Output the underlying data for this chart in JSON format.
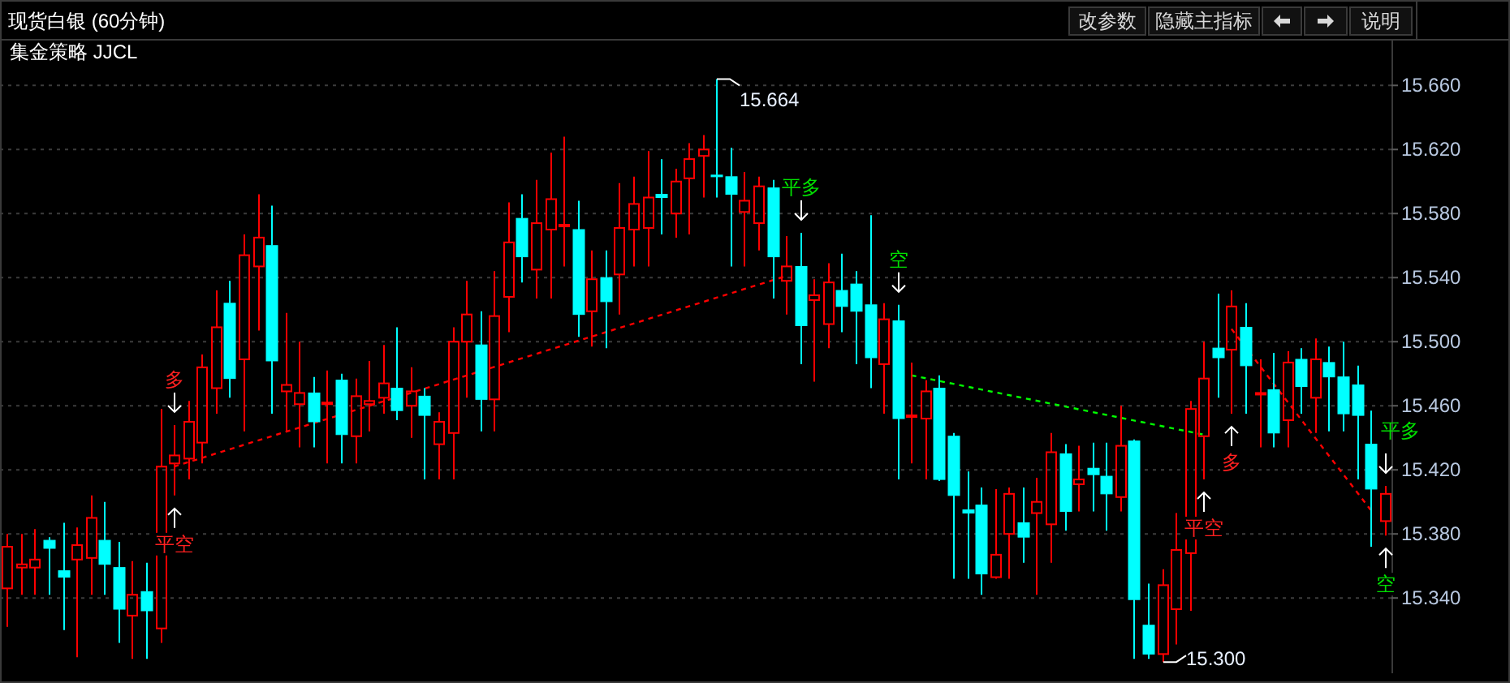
{
  "chart_data": {
    "type": "candlestick",
    "title": "现货白银 (60分钟)",
    "subtitle": "集金策略 JJCL",
    "categories": [
      null,
      null,
      null,
      null,
      null,
      null,
      null,
      null,
      null,
      null,
      null,
      null,
      null,
      null,
      null,
      null,
      null,
      null,
      null,
      null,
      null,
      null,
      null,
      null,
      null,
      null,
      null,
      null,
      null,
      null,
      null,
      null,
      null,
      null,
      null,
      null,
      null,
      null,
      null,
      null,
      null,
      null,
      null,
      null,
      null,
      null,
      null,
      null,
      null,
      null,
      null,
      null,
      null,
      null,
      null,
      null,
      null,
      null,
      null,
      null,
      null,
      null,
      null,
      null,
      null,
      null,
      null,
      null,
      null,
      null,
      null,
      null,
      null,
      null,
      null,
      null,
      null,
      null,
      null,
      null,
      null,
      null,
      null,
      null,
      null,
      null,
      null,
      null,
      null,
      null,
      null,
      null,
      null,
      null,
      null,
      null,
      null,
      null,
      null,
      null
    ],
    "colors": [
      "#ff0000",
      "#ff0000",
      "#ff0000",
      "#00ffff",
      "#00ffff",
      "#ff0000",
      "#ff0000",
      "#00ffff",
      "#00ffff",
      "#ff0000",
      "#00ffff",
      "#ff0000",
      "#ff0000",
      "#ff0000",
      "#ff0000",
      "#ff0000",
      "#00ffff",
      "#ff0000",
      "#ff0000",
      "#00ffff",
      "#ff0000",
      "#ff0000",
      "#00ffff",
      "#ff0000",
      "#00ffff",
      "#ff0000",
      "#ff0000",
      "#ff0000",
      "#00ffff",
      "#ff0000",
      "#00ffff",
      "#ff0000",
      "#ff0000",
      "#ff0000",
      "#00ffff",
      "#ff0000",
      "#ff0000",
      "#00ffff",
      "#ff0000",
      "#ff0000",
      "#ff0000",
      "#00ffff",
      "#ff0000",
      "#00ffff",
      "#ff0000",
      "#ff0000",
      "#ff0000",
      "#00ffff",
      "#ff0000",
      "#ff0000",
      "#ff0000",
      "#00ffff",
      "#00ffff",
      "#ff0000",
      "#ff0000",
      "#00ffff",
      "#ff0000",
      "#00ffff",
      "#ff0000",
      "#ff0000",
      "#00ffff",
      "#00ffff",
      "#00ffff",
      "#ff0000",
      "#00ffff",
      "#ff0000",
      "#ff0000",
      "#00ffff",
      "#00ffff",
      "#00ffff",
      "#00ffff",
      "#ff0000",
      "#ff0000",
      "#00ffff",
      "#ff0000",
      "#ff0000",
      "#00ffff",
      "#ff0000",
      "#00ffff",
      "#00ffff",
      "#ff0000",
      "#00ffff",
      "#00ffff",
      "#ff0000",
      "#ff0000",
      "#ff0000",
      "#ff0000",
      "#00ffff",
      "#ff0000",
      "#00ffff",
      "#ff0000",
      "#00ffff",
      "#ff0000",
      "#00ffff",
      "#ff0000",
      "#00ffff",
      "#00ffff",
      "#00ffff",
      "#00ffff",
      "#ff0000"
    ],
    "ohlc": [
      [
        15.346,
        15.38,
        15.322,
        15.372
      ],
      [
        15.359,
        15.38,
        15.342,
        15.361
      ],
      [
        15.359,
        15.383,
        15.342,
        15.364
      ],
      [
        15.376,
        15.378,
        15.342,
        15.371
      ],
      [
        15.357,
        15.387,
        15.32,
        15.353
      ],
      [
        15.364,
        15.384,
        15.303,
        15.373
      ],
      [
        15.365,
        15.404,
        15.342,
        15.39
      ],
      [
        15.376,
        15.4,
        15.342,
        15.361
      ],
      [
        15.359,
        15.375,
        15.312,
        15.333
      ],
      [
        15.329,
        15.363,
        15.302,
        15.342
      ],
      [
        15.344,
        15.362,
        15.302,
        15.332
      ],
      [
        15.321,
        15.458,
        15.312,
        15.422
      ],
      [
        15.424,
        15.448,
        15.404,
        15.429
      ],
      [
        15.427,
        15.463,
        15.414,
        15.45
      ],
      [
        15.437,
        15.492,
        15.424,
        15.484
      ],
      [
        15.471,
        15.532,
        15.455,
        15.509
      ],
      [
        15.524,
        15.538,
        15.465,
        15.477
      ],
      [
        15.489,
        15.567,
        15.444,
        15.554
      ],
      [
        15.547,
        15.592,
        15.507,
        15.565
      ],
      [
        15.56,
        15.585,
        15.455,
        15.488
      ],
      [
        15.469,
        15.518,
        15.444,
        15.473
      ],
      [
        15.461,
        15.5,
        15.434,
        15.468
      ],
      [
        15.468,
        15.478,
        15.434,
        15.45
      ],
      [
        15.461,
        15.482,
        15.424,
        15.462
      ],
      [
        15.476,
        15.48,
        15.424,
        15.442
      ],
      [
        15.441,
        15.477,
        15.424,
        15.466
      ],
      [
        15.461,
        15.488,
        15.444,
        15.463
      ],
      [
        15.465,
        15.498,
        15.455,
        15.474
      ],
      [
        15.471,
        15.509,
        15.451,
        15.457
      ],
      [
        15.46,
        15.484,
        15.44,
        15.469
      ],
      [
        15.466,
        15.471,
        15.414,
        15.454
      ],
      [
        15.436,
        15.456,
        15.414,
        15.45
      ],
      [
        15.443,
        15.509,
        15.414,
        15.5
      ],
      [
        15.5,
        15.538,
        15.465,
        15.517
      ],
      [
        15.498,
        15.519,
        15.444,
        15.464
      ],
      [
        15.464,
        15.544,
        15.444,
        15.516
      ],
      [
        15.528,
        15.587,
        15.506,
        15.562
      ],
      [
        15.577,
        15.592,
        15.537,
        15.553
      ],
      [
        15.545,
        15.601,
        15.527,
        15.574
      ],
      [
        15.57,
        15.618,
        15.527,
        15.589
      ],
      [
        15.572,
        15.628,
        15.547,
        15.573
      ],
      [
        15.57,
        15.588,
        15.503,
        15.517
      ],
      [
        15.519,
        15.557,
        15.497,
        15.539
      ],
      [
        15.54,
        15.557,
        15.496,
        15.525
      ],
      [
        15.542,
        15.599,
        15.517,
        15.571
      ],
      [
        15.57,
        15.603,
        15.547,
        15.586
      ],
      [
        15.571,
        15.619,
        15.547,
        15.59
      ],
      [
        15.592,
        15.614,
        15.567,
        15.59
      ],
      [
        15.58,
        15.608,
        15.565,
        15.6
      ],
      [
        15.602,
        15.624,
        15.567,
        15.614
      ],
      [
        15.616,
        15.629,
        15.59,
        15.62
      ],
      [
        15.604,
        15.664,
        15.59,
        15.603
      ],
      [
        15.603,
        15.621,
        15.547,
        15.592
      ],
      [
        15.581,
        15.606,
        15.547,
        15.588
      ],
      [
        15.574,
        15.603,
        15.557,
        15.597
      ],
      [
        15.596,
        15.601,
        15.527,
        15.553
      ],
      [
        15.538,
        15.566,
        15.517,
        15.547
      ],
      [
        15.547,
        15.568,
        15.486,
        15.51
      ],
      [
        15.526,
        15.539,
        15.475,
        15.529
      ],
      [
        15.511,
        15.549,
        15.496,
        15.537
      ],
      [
        15.532,
        15.555,
        15.506,
        15.522
      ],
      [
        15.536,
        15.544,
        15.486,
        15.519
      ],
      [
        15.523,
        15.579,
        15.471,
        15.49
      ],
      [
        15.486,
        15.524,
        15.455,
        15.514
      ],
      [
        15.513,
        15.523,
        15.414,
        15.452
      ],
      [
        15.453,
        15.487,
        15.424,
        15.454
      ],
      [
        15.452,
        15.476,
        15.414,
        15.469
      ],
      [
        15.471,
        15.479,
        15.413,
        15.414
      ],
      [
        15.441,
        15.443,
        15.352,
        15.404
      ],
      [
        15.395,
        15.419,
        15.352,
        15.393
      ],
      [
        15.398,
        15.409,
        15.342,
        15.355
      ],
      [
        15.353,
        15.408,
        15.352,
        15.367
      ],
      [
        15.38,
        15.409,
        15.352,
        15.405
      ],
      [
        15.387,
        15.409,
        15.362,
        15.378
      ],
      [
        15.393,
        15.415,
        15.342,
        15.4
      ],
      [
        15.386,
        15.443,
        15.362,
        15.431
      ],
      [
        15.43,
        15.436,
        15.382,
        15.394
      ],
      [
        15.411,
        15.435,
        15.394,
        15.414
      ],
      [
        15.421,
        15.437,
        15.394,
        15.417
      ],
      [
        15.416,
        15.437,
        15.382,
        15.405
      ],
      [
        15.403,
        15.46,
        15.394,
        15.435
      ],
      [
        15.438,
        15.439,
        15.302,
        15.339
      ],
      [
        15.323,
        15.349,
        15.302,
        15.305
      ],
      [
        15.305,
        15.358,
        15.3,
        15.348
      ],
      [
        15.333,
        15.393,
        15.311,
        15.37
      ],
      [
        15.368,
        15.463,
        15.332,
        15.458
      ],
      [
        15.441,
        15.5,
        15.414,
        15.477
      ],
      [
        15.496,
        15.53,
        15.465,
        15.49
      ],
      [
        15.495,
        15.532,
        15.455,
        15.522
      ],
      [
        15.509,
        15.524,
        15.455,
        15.485
      ],
      [
        15.467,
        15.489,
        15.434,
        15.468
      ],
      [
        15.47,
        15.493,
        15.434,
        15.443
      ],
      [
        15.451,
        15.494,
        15.434,
        15.487
      ],
      [
        15.489,
        15.496,
        15.455,
        15.472
      ],
      [
        15.465,
        15.502,
        15.443,
        15.489
      ],
      [
        15.487,
        15.497,
        15.444,
        15.478
      ],
      [
        15.478,
        15.5,
        15.444,
        15.455
      ],
      [
        15.473,
        15.485,
        15.414,
        15.454
      ],
      [
        15.436,
        15.457,
        15.372,
        15.408
      ],
      [
        15.388,
        15.41,
        15.379,
        15.405
      ]
    ],
    "series": [
      {
        "type": "line",
        "color": "#ff0000",
        "line_style": "dotted",
        "values": [
          null,
          null,
          null,
          null,
          null,
          null,
          null,
          null,
          null,
          null,
          null,
          null,
          15.422,
          null,
          null,
          null,
          null,
          null,
          null,
          null,
          null,
          null,
          null,
          null,
          null,
          null,
          null,
          null,
          null,
          null,
          null,
          null,
          null,
          null,
          null,
          null,
          null,
          null,
          null,
          null,
          null,
          null,
          null,
          null,
          null,
          null,
          null,
          null,
          null,
          null,
          null,
          null,
          null,
          null,
          null,
          null,
          15.541,
          null,
          null,
          null,
          null,
          null,
          null,
          null,
          null,
          null,
          null,
          null,
          null,
          null,
          null,
          null,
          null,
          null,
          null,
          null,
          null,
          null,
          null,
          null,
          null,
          null,
          null,
          null,
          null,
          null,
          null,
          null,
          null,
          null,
          null,
          null,
          null,
          null,
          null,
          null,
          null,
          null,
          null,
          null
        ]
      },
      {
        "type": "line",
        "color": "#00ff00",
        "line_style": "dotted",
        "values": [
          null,
          null,
          null,
          null,
          null,
          null,
          null,
          null,
          null,
          null,
          null,
          null,
          null,
          null,
          null,
          null,
          null,
          null,
          null,
          null,
          null,
          null,
          null,
          null,
          null,
          null,
          null,
          null,
          null,
          null,
          null,
          null,
          null,
          null,
          null,
          null,
          null,
          null,
          null,
          null,
          null,
          null,
          null,
          null,
          null,
          null,
          null,
          null,
          null,
          null,
          null,
          null,
          null,
          null,
          null,
          null,
          null,
          null,
          null,
          null,
          null,
          null,
          null,
          null,
          null,
          15.479,
          null,
          null,
          null,
          null,
          null,
          null,
          null,
          null,
          null,
          null,
          null,
          null,
          null,
          null,
          null,
          null,
          null,
          null,
          null,
          null,
          15.442,
          null,
          null,
          null,
          null,
          null,
          null,
          null,
          null,
          null,
          null,
          null,
          null,
          null
        ]
      },
      {
        "type": "line",
        "color": "#ff0000",
        "line_style": "dotted",
        "values": [
          null,
          null,
          null,
          null,
          null,
          null,
          null,
          null,
          null,
          null,
          null,
          null,
          null,
          null,
          null,
          null,
          null,
          null,
          null,
          null,
          null,
          null,
          null,
          null,
          null,
          null,
          null,
          null,
          null,
          null,
          null,
          null,
          null,
          null,
          null,
          null,
          null,
          null,
          null,
          null,
          null,
          null,
          null,
          null,
          null,
          null,
          null,
          null,
          null,
          null,
          null,
          null,
          null,
          null,
          null,
          null,
          null,
          null,
          null,
          null,
          null,
          null,
          null,
          null,
          null,
          null,
          null,
          null,
          null,
          null,
          null,
          null,
          null,
          null,
          null,
          null,
          null,
          null,
          null,
          null,
          null,
          null,
          null,
          null,
          null,
          null,
          null,
          null,
          15.508,
          null,
          null,
          null,
          null,
          null,
          null,
          null,
          null,
          null,
          15.395,
          null
        ]
      }
    ],
    "ylim": [
      15.293,
      15.688
    ],
    "yticks": [
      {
        "value": 15.34,
        "label": "15.340"
      },
      {
        "value": 15.38,
        "label": "15.380"
      },
      {
        "value": 15.42,
        "label": "15.420"
      },
      {
        "value": 15.46,
        "label": "15.460"
      },
      {
        "value": 15.5,
        "label": "15.500"
      },
      {
        "value": 15.54,
        "label": "15.540"
      },
      {
        "value": 15.58,
        "label": "15.580"
      },
      {
        "value": 15.62,
        "label": "15.620"
      },
      {
        "value": 15.66,
        "label": "15.660"
      }
    ],
    "grid": "y",
    "tick_labels": "y",
    "annotations": [
      "多",
      "平空",
      "平多",
      "空",
      "平空",
      "多",
      "平多",
      "空",
      "15.664",
      "15.300",
      "改参数",
      "隐藏主指标",
      "说明"
    ]
  }
}
